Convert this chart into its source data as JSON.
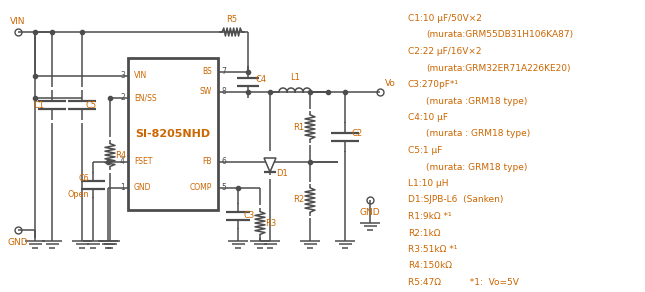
{
  "bg_color": "#ffffff",
  "sc": "#4d4d4d",
  "oc": "#cc6600",
  "bom_lines": [
    [
      "C1:10 μF/50V×2",
      false
    ],
    [
      "    (murata:GRM55DB31H106KA87)",
      true
    ],
    [
      "C2:22 μF/16V×2",
      false
    ],
    [
      "    (murata:GRM32ER71A226KE20)",
      true
    ],
    [
      "C3:270pF*¹",
      false
    ],
    [
      "    (murata :GRM18 type)",
      true
    ],
    [
      "C4:10 μF",
      false
    ],
    [
      "    (murata : GRM18 type)",
      true
    ],
    [
      "C5:1 μF",
      false
    ],
    [
      "    (murata: GRM18 type)",
      true
    ],
    [
      "L1:10 μH",
      false
    ],
    [
      "D1:SJPB-L6  (Sanken)",
      false
    ],
    [
      "R1:9kΩ *¹",
      false
    ],
    [
      "R2:1kΩ",
      false
    ],
    [
      "R3:51kΩ *¹",
      false
    ],
    [
      "R4:150kΩ",
      false
    ],
    [
      "R5:47Ω          *1:  Vo=5V",
      false
    ]
  ]
}
